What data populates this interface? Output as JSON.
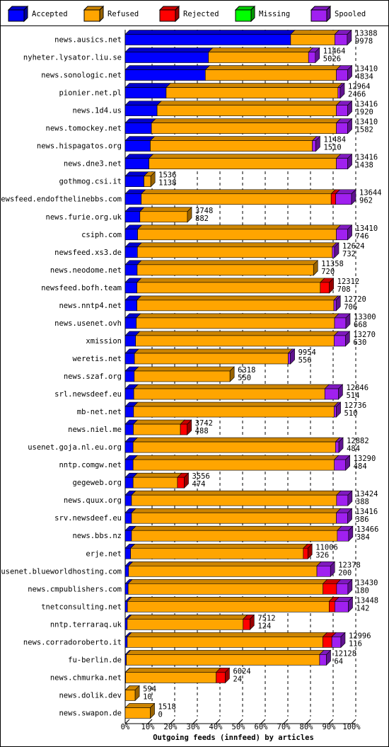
{
  "chart_data": {
    "type": "stacked-bar-3d",
    "xlabel": "Outgoing feeds (innfeed) by articles",
    "categories": [
      "news.ausics.net",
      "nyheter.lysator.liu.se",
      "news.sonologic.net",
      "pionier.net.pl",
      "news.1d4.us",
      "news.tomockey.net",
      "news.hispagatos.org",
      "news.dne3.net",
      "gothmog.csi.it",
      "newsfeed.endofthelinebbs.com",
      "news.furie.org.uk",
      "csiph.com",
      "newsfeed.xs3.de",
      "news.neodome.net",
      "newsfeed.bofh.team",
      "news.nntp4.net",
      "news.usenet.ovh",
      "xmission",
      "weretis.net",
      "news.szaf.org",
      "srl.newsdeef.eu",
      "mb-net.net",
      "news.niel.me",
      "usenet.goja.nl.eu.org",
      "nntp.comgw.net",
      "gegeweb.org",
      "news.quux.org",
      "srv.newsdeef.eu",
      "news.bbs.nz",
      "erje.net",
      "usenet.blueworldhosting.com",
      "news.cmpublishers.com",
      "tnetconsulting.net",
      "nntp.terraraq.uk",
      "news.corradoroberto.it",
      "fu-berlin.de",
      "news.chmurka.net",
      "news.dolik.dev",
      "news.swapon.de"
    ],
    "offered": [
      13388,
      11464,
      13410,
      12964,
      13416,
      13410,
      11484,
      13416,
      1536,
      13644,
      3748,
      13410,
      12624,
      11358,
      12312,
      12720,
      13300,
      13270,
      9954,
      6318,
      12846,
      12736,
      3742,
      12882,
      13290,
      3556,
      13424,
      13416,
      13466,
      11006,
      12378,
      13430,
      13448,
      7512,
      12996,
      12128,
      6024,
      594,
      1518
    ],
    "accepted": [
      9978,
      5026,
      4834,
      2466,
      1920,
      1582,
      1510,
      1438,
      1138,
      962,
      882,
      746,
      732,
      720,
      708,
      706,
      668,
      630,
      556,
      550,
      514,
      510,
      488,
      484,
      484,
      474,
      388,
      386,
      384,
      326,
      200,
      180,
      142,
      124,
      116,
      64,
      24,
      10,
      0
    ],
    "series": [
      {
        "name": "Accepted",
        "color": "#0000ff",
        "values": [
          73.1,
          36.8,
          35.4,
          18.1,
          14.1,
          11.6,
          11.1,
          10.5,
          8.3,
          7.1,
          6.5,
          5.5,
          5.4,
          5.3,
          5.2,
          5.2,
          4.9,
          4.6,
          4.1,
          4.0,
          3.8,
          3.7,
          3.6,
          3.5,
          3.5,
          3.5,
          2.8,
          2.8,
          2.8,
          2.4,
          1.5,
          1.3,
          1.0,
          0.9,
          0.9,
          0.5,
          0.2,
          0.1,
          0
        ]
      },
      {
        "name": "Refused",
        "color": "#ffa500",
        "values": [
          19.5,
          44.2,
          57.9,
          75.9,
          79.2,
          81.7,
          71.6,
          82.8,
          3.0,
          83.9,
          21.0,
          87.8,
          86.1,
          77.9,
          81.0,
          87.0,
          87.6,
          87.7,
          67.9,
          42.3,
          84.4,
          88.6,
          20.8,
          89.4,
          88.9,
          19.6,
          90.6,
          90.5,
          90.9,
          76.3,
          83.2,
          86.1,
          89.1,
          51.2,
          86.4,
          85.4,
          40.0,
          4.3,
          11.1
        ]
      },
      {
        "name": "Rejected",
        "color": "#ff0000",
        "values": [
          0,
          0,
          0,
          0,
          0,
          0,
          0,
          0,
          0,
          2,
          0,
          0,
          0,
          0,
          4,
          0,
          0,
          0,
          0,
          0,
          0,
          0,
          3,
          0,
          0,
          3,
          0,
          0,
          0,
          2,
          0,
          6,
          2.5,
          3,
          4,
          0,
          4,
          0,
          0
        ]
      },
      {
        "name": "Missing",
        "color": "#00ff00",
        "values": [
          0,
          0,
          0,
          0,
          0,
          0,
          0,
          0,
          0,
          0,
          0,
          0,
          0,
          0,
          0,
          0,
          0,
          0,
          0,
          0,
          0,
          0,
          0,
          0,
          0,
          0,
          0,
          0,
          0,
          0,
          0,
          0,
          0,
          0,
          0,
          0,
          0,
          0,
          0
        ]
      },
      {
        "name": "Spooled",
        "color": "#a020f0",
        "values": [
          5.5,
          3,
          5,
          1,
          5,
          5,
          1.5,
          5,
          0,
          7,
          0,
          5,
          1,
          0,
          0,
          1,
          5,
          5,
          1,
          0,
          6,
          1,
          0,
          1.5,
          5,
          0,
          5,
          5,
          5,
          0,
          6,
          5,
          6,
          0,
          4,
          3,
          0,
          0,
          0
        ]
      }
    ],
    "xlim": [
      0,
      100
    ],
    "xticks": [
      {
        "value": 0,
        "label": "0%"
      },
      {
        "value": 10,
        "label": "10%"
      },
      {
        "value": 20,
        "label": "20%"
      },
      {
        "value": 30,
        "label": "30%"
      },
      {
        "value": 40,
        "label": "40%"
      },
      {
        "value": 50,
        "label": "50%"
      },
      {
        "value": 60,
        "label": "60%"
      },
      {
        "value": 70,
        "label": "70%"
      },
      {
        "value": 80,
        "label": "80%"
      },
      {
        "value": 90,
        "label": "90%"
      },
      {
        "value": 100,
        "label": "100%"
      }
    ],
    "grid": true
  }
}
